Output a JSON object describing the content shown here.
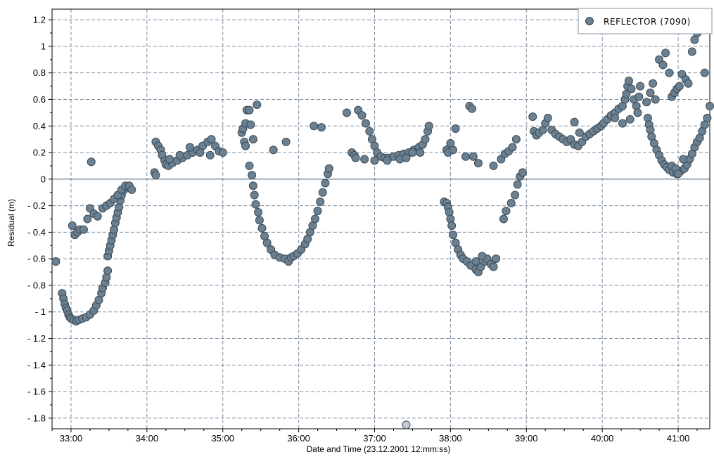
{
  "chart_data": {
    "type": "scatter",
    "xlabel": "Date and Time (23.12.2001 12:mm:ss)",
    "ylabel": "Residual (m)",
    "x_unit": "time mm:ss",
    "xlim": [
      "32:45",
      "41:25"
    ],
    "ylim": [
      -1.88,
      1.28
    ],
    "x_ticks": [
      "33:00",
      "34:00",
      "35:00",
      "36:00",
      "37:00",
      "38:00",
      "39:00",
      "40:00",
      "41:00"
    ],
    "y_ticks": [
      "1.2",
      "1",
      "0.8",
      "0.6",
      "0.4",
      "0.2",
      "0",
      "-0.2",
      "-0.4",
      "-0.6",
      "-0.8",
      "-1",
      "-1.2",
      "-1.4",
      "-1.6",
      "-1.8"
    ],
    "grid": true,
    "zero_line": true,
    "legend_position": "top-right",
    "colors": {
      "point_fill": "#6b8191",
      "point_stroke": "#3b4a56",
      "grid": "#7f8fa3",
      "zero_line": "#7a8c9d",
      "outlier_fill": "#c3ccd4"
    },
    "series": [
      {
        "name": "REFLECTOR  (7090)",
        "points": [
          [
            "32:48",
            -0.62
          ],
          [
            "32:53",
            -0.86
          ],
          [
            "32:54",
            -0.9
          ],
          [
            "32:55",
            -0.94
          ],
          [
            "32:56",
            -0.97
          ],
          [
            "32:57",
            -0.99
          ],
          [
            "32:58",
            -1.02
          ],
          [
            "32:59",
            -1.04
          ],
          [
            "33:00",
            -1.05
          ],
          [
            "33:02",
            -1.06
          ],
          [
            "33:04",
            -1.07
          ],
          [
            "33:06",
            -1.06
          ],
          [
            "33:09",
            -1.05
          ],
          [
            "33:12",
            -1.04
          ],
          [
            "33:15",
            -1.02
          ],
          [
            "33:18",
            -0.99
          ],
          [
            "33:20",
            -0.95
          ],
          [
            "33:22",
            -0.91
          ],
          [
            "33:24",
            -0.86
          ],
          [
            "33:25",
            -0.82
          ],
          [
            "33:27",
            -0.78
          ],
          [
            "33:28",
            -0.74
          ],
          [
            "33:29",
            -0.69
          ],
          [
            "33:29",
            -0.58
          ],
          [
            "33:30",
            -0.54
          ],
          [
            "33:31",
            -0.5
          ],
          [
            "33:32",
            -0.46
          ],
          [
            "33:33",
            -0.42
          ],
          [
            "33:34",
            -0.38
          ],
          [
            "33:35",
            -0.33
          ],
          [
            "33:36",
            -0.29
          ],
          [
            "33:37",
            -0.25
          ],
          [
            "33:38",
            -0.21
          ],
          [
            "33:39",
            -0.16
          ],
          [
            "33:40",
            -0.12
          ],
          [
            "33:42",
            -0.08
          ],
          [
            "33:44",
            -0.06
          ],
          [
            "33:01",
            -0.35
          ],
          [
            "33:03",
            -0.42
          ],
          [
            "33:05",
            -0.4
          ],
          [
            "33:07",
            -0.38
          ],
          [
            "33:10",
            -0.38
          ],
          [
            "33:13",
            -0.3
          ],
          [
            "33:15",
            -0.22
          ],
          [
            "33:16",
            0.13
          ],
          [
            "33:18",
            -0.26
          ],
          [
            "33:21",
            -0.28
          ],
          [
            "33:25",
            -0.22
          ],
          [
            "33:28",
            -0.2
          ],
          [
            "33:31",
            -0.18
          ],
          [
            "33:34",
            -0.15
          ],
          [
            "33:37",
            -0.12
          ],
          [
            "33:40",
            -0.08
          ],
          [
            "33:43",
            -0.05
          ],
          [
            "33:46",
            -0.05
          ],
          [
            "33:48",
            -0.08
          ],
          [
            "34:06",
            0.05
          ],
          [
            "34:07",
            0.03
          ],
          [
            "34:07",
            0.28
          ],
          [
            "34:09",
            0.25
          ],
          [
            "34:11",
            0.22
          ],
          [
            "34:12",
            0.18
          ],
          [
            "34:14",
            0.14
          ],
          [
            "34:15",
            0.11
          ],
          [
            "34:17",
            0.1
          ],
          [
            "34:20",
            0.12
          ],
          [
            "34:24",
            0.14
          ],
          [
            "34:28",
            0.16
          ],
          [
            "34:32",
            0.18
          ],
          [
            "34:36",
            0.2
          ],
          [
            "34:40",
            0.22
          ],
          [
            "34:44",
            0.25
          ],
          [
            "34:48",
            0.28
          ],
          [
            "34:51",
            0.3
          ],
          [
            "34:54",
            0.25
          ],
          [
            "34:57",
            0.21
          ],
          [
            "35:00",
            0.2
          ],
          [
            "34:18",
            0.15
          ],
          [
            "34:26",
            0.18
          ],
          [
            "34:34",
            0.24
          ],
          [
            "34:42",
            0.2
          ],
          [
            "34:50",
            0.18
          ],
          [
            "35:15",
            0.35
          ],
          [
            "35:16",
            0.38
          ],
          [
            "35:18",
            0.42
          ],
          [
            "35:19",
            0.52
          ],
          [
            "35:21",
            0.52
          ],
          [
            "35:22",
            0.41
          ],
          [
            "35:24",
            0.3
          ],
          [
            "35:27",
            0.56
          ],
          [
            "35:17",
            0.28
          ],
          [
            "35:18",
            0.25
          ],
          [
            "35:21",
            0.1
          ],
          [
            "35:23",
            0.03
          ],
          [
            "35:24",
            -0.05
          ],
          [
            "35:25",
            -0.12
          ],
          [
            "35:26",
            -0.19
          ],
          [
            "35:28",
            -0.25
          ],
          [
            "35:29",
            -0.31
          ],
          [
            "35:31",
            -0.37
          ],
          [
            "35:33",
            -0.43
          ],
          [
            "35:35",
            -0.48
          ],
          [
            "35:38",
            -0.53
          ],
          [
            "35:41",
            -0.57
          ],
          [
            "35:45",
            -0.59
          ],
          [
            "35:49",
            -0.6
          ],
          [
            "35:52",
            -0.62
          ],
          [
            "35:54",
            -0.59
          ],
          [
            "35:56",
            -0.58
          ],
          [
            "35:59",
            -0.56
          ],
          [
            "36:02",
            -0.53
          ],
          [
            "36:05",
            -0.49
          ],
          [
            "36:07",
            -0.45
          ],
          [
            "36:09",
            -0.4
          ],
          [
            "36:11",
            -0.35
          ],
          [
            "36:13",
            -0.3
          ],
          [
            "36:15",
            -0.24
          ],
          [
            "36:17",
            -0.17
          ],
          [
            "36:19",
            -0.1
          ],
          [
            "36:21",
            -0.03
          ],
          [
            "36:23",
            0.04
          ],
          [
            "36:24",
            0.08
          ],
          [
            "35:40",
            0.22
          ],
          [
            "35:50",
            0.28
          ],
          [
            "36:12",
            0.4
          ],
          [
            "36:18",
            0.39
          ],
          [
            "36:38",
            0.5
          ],
          [
            "36:42",
            0.2
          ],
          [
            "36:44",
            0.18
          ],
          [
            "36:47",
            0.52
          ],
          [
            "36:50",
            0.48
          ],
          [
            "36:53",
            0.42
          ],
          [
            "36:56",
            0.36
          ],
          [
            "36:58",
            0.3
          ],
          [
            "37:00",
            0.25
          ],
          [
            "37:02",
            0.2
          ],
          [
            "37:05",
            0.17
          ],
          [
            "37:08",
            0.16
          ],
          [
            "37:11",
            0.16
          ],
          [
            "37:15",
            0.17
          ],
          [
            "37:19",
            0.18
          ],
          [
            "37:23",
            0.19
          ],
          [
            "37:27",
            0.2
          ],
          [
            "37:31",
            0.22
          ],
          [
            "37:35",
            0.24
          ],
          [
            "37:38",
            0.26
          ],
          [
            "37:40",
            0.3
          ],
          [
            "37:42",
            0.36
          ],
          [
            "37:43",
            0.4
          ],
          [
            "36:45",
            0.16
          ],
          [
            "36:52",
            0.15
          ],
          [
            "37:00",
            0.14
          ],
          [
            "37:10",
            0.14
          ],
          [
            "37:20",
            0.15
          ],
          [
            "37:25",
            0.16
          ],
          [
            "37:30",
            0.2
          ],
          [
            "37:36",
            0.2
          ],
          [
            "37:25",
            -1.85
          ],
          [
            "37:57",
            0.22
          ],
          [
            "37:58",
            0.2
          ],
          [
            "38:00",
            0.27
          ],
          [
            "38:02",
            0.22
          ],
          [
            "38:04",
            0.38
          ],
          [
            "38:12",
            0.17
          ],
          [
            "38:18",
            0.17
          ],
          [
            "38:22",
            0.12
          ],
          [
            "38:15",
            0.55
          ],
          [
            "38:17",
            0.53
          ],
          [
            "37:55",
            -0.17
          ],
          [
            "37:57",
            -0.18
          ],
          [
            "37:58",
            -0.21
          ],
          [
            "37:59",
            -0.25
          ],
          [
            "38:00",
            -0.3
          ],
          [
            "38:01",
            -0.35
          ],
          [
            "38:02",
            -0.42
          ],
          [
            "38:04",
            -0.48
          ],
          [
            "38:06",
            -0.53
          ],
          [
            "38:08",
            -0.57
          ],
          [
            "38:10",
            -0.6
          ],
          [
            "38:13",
            -0.62
          ],
          [
            "38:16",
            -0.65
          ],
          [
            "38:20",
            -0.68
          ],
          [
            "38:22",
            -0.7
          ],
          [
            "38:24",
            -0.66
          ],
          [
            "38:27",
            -0.62
          ],
          [
            "38:29",
            -0.6
          ],
          [
            "38:32",
            -0.64
          ],
          [
            "38:34",
            -0.66
          ],
          [
            "38:36",
            -0.6
          ],
          [
            "38:20",
            -0.62
          ],
          [
            "38:25",
            -0.58
          ],
          [
            "38:34",
            0.1
          ],
          [
            "38:40",
            0.15
          ],
          [
            "38:43",
            0.19
          ],
          [
            "38:46",
            0.21
          ],
          [
            "38:49",
            0.24
          ],
          [
            "38:52",
            0.3
          ],
          [
            "38:42",
            -0.3
          ],
          [
            "38:44",
            -0.24
          ],
          [
            "38:48",
            -0.18
          ],
          [
            "38:51",
            -0.12
          ],
          [
            "38:53",
            -0.04
          ],
          [
            "38:55",
            0.02
          ],
          [
            "38:57",
            0.05
          ],
          [
            "39:05",
            0.47
          ],
          [
            "39:06",
            0.36
          ],
          [
            "39:08",
            0.33
          ],
          [
            "39:10",
            0.35
          ],
          [
            "39:13",
            0.37
          ],
          [
            "39:15",
            0.42
          ],
          [
            "39:17",
            0.46
          ],
          [
            "39:20",
            0.37
          ],
          [
            "39:23",
            0.34
          ],
          [
            "39:26",
            0.32
          ],
          [
            "39:29",
            0.3
          ],
          [
            "39:32",
            0.28
          ],
          [
            "39:35",
            0.3
          ],
          [
            "39:38",
            0.26
          ],
          [
            "39:41",
            0.25
          ],
          [
            "39:44",
            0.28
          ],
          [
            "39:47",
            0.32
          ],
          [
            "39:50",
            0.34
          ],
          [
            "39:53",
            0.36
          ],
          [
            "39:56",
            0.38
          ],
          [
            "39:59",
            0.4
          ],
          [
            "40:01",
            0.42
          ],
          [
            "40:04",
            0.45
          ],
          [
            "40:07",
            0.48
          ],
          [
            "40:10",
            0.5
          ],
          [
            "40:13",
            0.53
          ],
          [
            "40:16",
            0.55
          ],
          [
            "40:18",
            0.6
          ],
          [
            "40:19",
            0.64
          ],
          [
            "40:20",
            0.7
          ],
          [
            "40:21",
            0.74
          ],
          [
            "40:23",
            0.68
          ],
          [
            "40:25",
            0.6
          ],
          [
            "40:27",
            0.55
          ],
          [
            "40:29",
            0.62
          ],
          [
            "40:30",
            0.7
          ],
          [
            "39:38",
            0.43
          ],
          [
            "39:42",
            0.35
          ],
          [
            "40:10",
            0.46
          ],
          [
            "40:16",
            0.42
          ],
          [
            "40:22",
            0.45
          ],
          [
            "40:28",
            0.5
          ],
          [
            "40:35",
            0.58
          ],
          [
            "40:38",
            0.65
          ],
          [
            "40:40",
            0.72
          ],
          [
            "40:42",
            0.6
          ],
          [
            "40:45",
            0.9
          ],
          [
            "40:48",
            0.86
          ],
          [
            "40:50",
            0.95
          ],
          [
            "40:53",
            0.8
          ],
          [
            "40:55",
            0.62
          ],
          [
            "40:57",
            0.65
          ],
          [
            "40:59",
            0.68
          ],
          [
            "41:01",
            0.7
          ],
          [
            "41:03",
            0.79
          ],
          [
            "41:06",
            0.75
          ],
          [
            "41:08",
            0.72
          ],
          [
            "41:11",
            0.96
          ],
          [
            "41:13",
            1.05
          ],
          [
            "41:15",
            1.1
          ],
          [
            "41:17",
            1.12
          ],
          [
            "41:21",
            0.8
          ],
          [
            "40:36",
            0.46
          ],
          [
            "40:37",
            0.41
          ],
          [
            "40:38",
            0.37
          ],
          [
            "40:39",
            0.32
          ],
          [
            "40:41",
            0.27
          ],
          [
            "40:43",
            0.22
          ],
          [
            "40:45",
            0.18
          ],
          [
            "40:47",
            0.14
          ],
          [
            "40:49",
            0.11
          ],
          [
            "40:51",
            0.09
          ],
          [
            "40:53",
            0.07
          ],
          [
            "40:56",
            0.05
          ],
          [
            "40:59",
            0.04
          ],
          [
            "41:02",
            0.06
          ],
          [
            "41:05",
            0.08
          ],
          [
            "41:07",
            0.11
          ],
          [
            "41:09",
            0.15
          ],
          [
            "41:11",
            0.19
          ],
          [
            "41:13",
            0.24
          ],
          [
            "41:15",
            0.28
          ],
          [
            "41:17",
            0.31
          ],
          [
            "41:19",
            0.36
          ],
          [
            "41:21",
            0.41
          ],
          [
            "41:23",
            0.46
          ],
          [
            "41:25",
            0.55
          ],
          [
            "40:55",
            0.1
          ],
          [
            "40:58",
            0.08
          ],
          [
            "41:00",
            0.04
          ],
          [
            "41:04",
            0.15
          ]
        ]
      }
    ]
  }
}
